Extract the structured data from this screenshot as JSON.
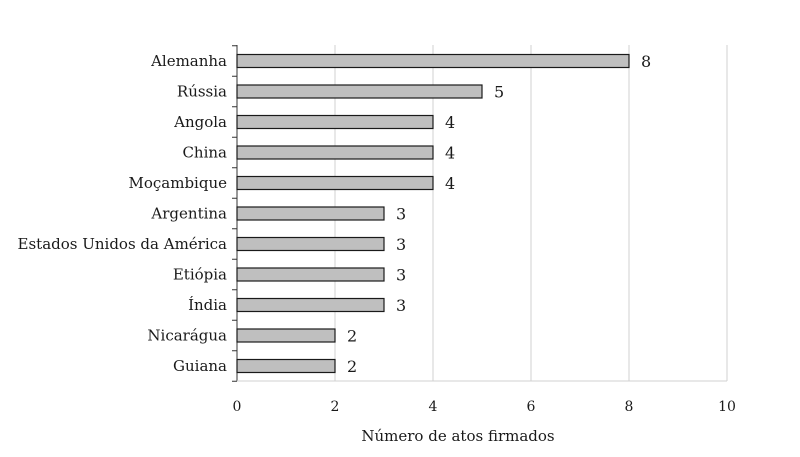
{
  "chart_data": {
    "type": "bar",
    "orientation": "horizontal",
    "categories": [
      "Alemanha",
      "Rússia",
      "Angola",
      "China",
      "Moçambique",
      "Argentina",
      "Estados Unidos da América",
      "Etiópia",
      "Índia",
      "Nicarágua",
      "Guiana"
    ],
    "values": [
      8,
      5,
      4,
      4,
      4,
      3,
      3,
      3,
      3,
      2,
      2
    ],
    "title": "",
    "xlabel": "Número de atos firmados",
    "ylabel": "",
    "xlim": [
      0,
      10
    ],
    "xticks": [
      0,
      2,
      4,
      6,
      8,
      10
    ],
    "grid": "vertical",
    "data_labels": true,
    "colors": {
      "bar_fill": "#bfbfbf",
      "bar_stroke": "#1a1a1a",
      "grid": "#d0d0d0",
      "axis": "#333333",
      "text": "#1a1a1a"
    }
  }
}
